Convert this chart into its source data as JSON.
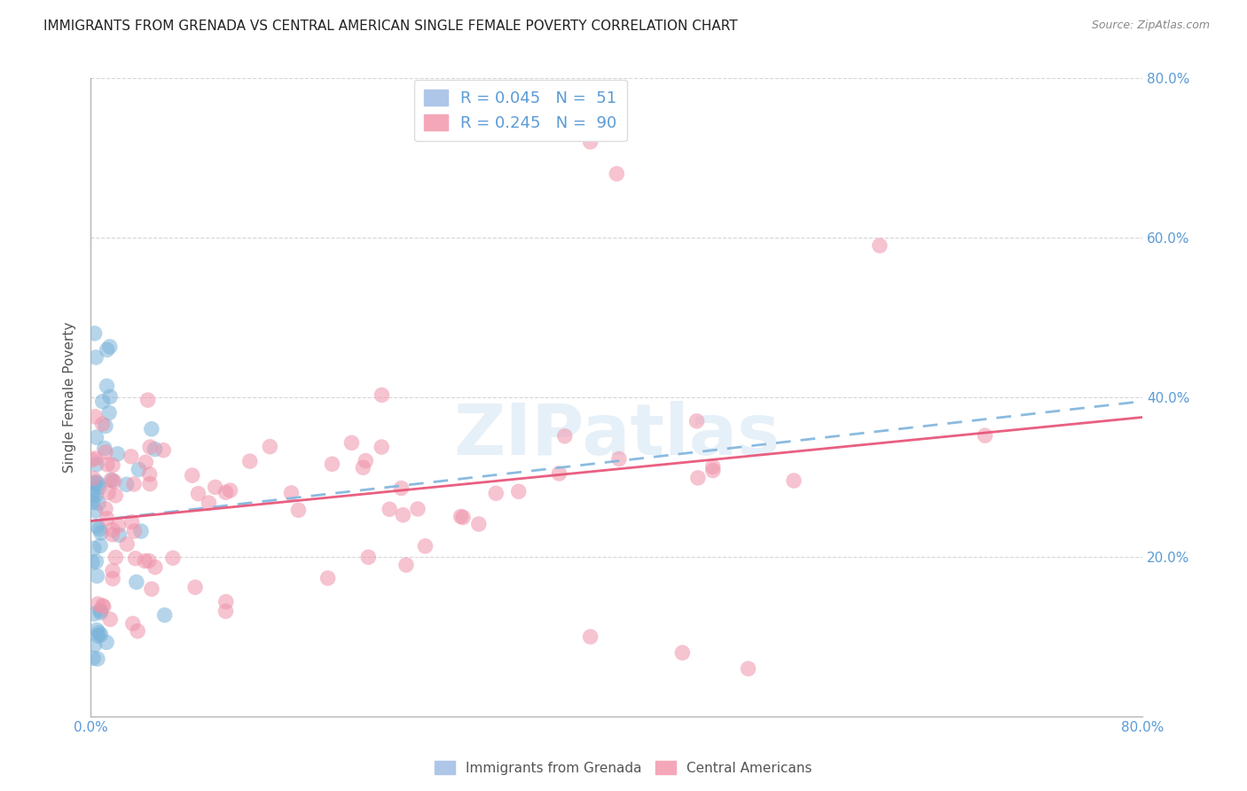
{
  "title": "IMMIGRANTS FROM GRENADA VS CENTRAL AMERICAN SINGLE FEMALE POVERTY CORRELATION CHART",
  "source": "Source: ZipAtlas.com",
  "ylabel": "Single Female Poverty",
  "xlim": [
    0.0,
    0.8
  ],
  "ylim": [
    0.0,
    0.8
  ],
  "xtick_positions": [
    0.0,
    0.2,
    0.4,
    0.6,
    0.8
  ],
  "xticklabels": [
    "0.0%",
    "",
    "",
    "",
    "80.0%"
  ],
  "ytick_positions": [
    0.2,
    0.4,
    0.6,
    0.8
  ],
  "ytick_labels_right": [
    "20.0%",
    "40.0%",
    "60.0%",
    "80.0%"
  ],
  "watermark": "ZIPatlas",
  "blue_color": "#7ab3d9",
  "pink_color": "#f093aa",
  "blue_line_color": "#85b8df",
  "pink_line_color": "#e8567a",
  "background_color": "#ffffff",
  "grid_color": "#cccccc",
  "title_color": "#333333",
  "tick_color": "#5b9bd5",
  "blue_trend_start": 0.245,
  "blue_trend_end": 0.395,
  "pink_trend_start": 0.245,
  "pink_trend_end": 0.375,
  "legend_blue_R": "0.045",
  "legend_blue_N": "51",
  "legend_pink_R": "0.245",
  "legend_pink_N": "90",
  "legend_label_blue": "Immigrants from Grenada",
  "legend_label_pink": "Central Americans"
}
